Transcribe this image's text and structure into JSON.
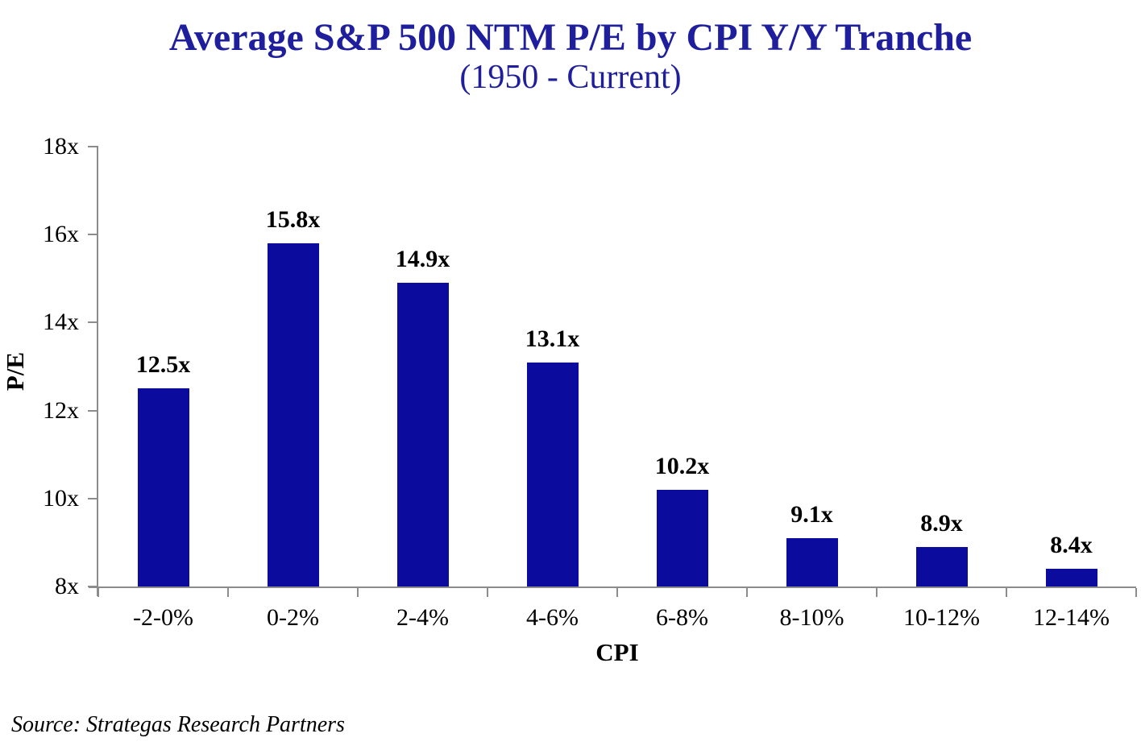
{
  "chart": {
    "title_line1": "Average S&P 500 NTM P/E by CPI Y/Y Tranche",
    "title_line2": "(1950 - Current)",
    "y_axis_title": "P/E",
    "x_axis_title": "CPI",
    "source_note": "Source: Strategas Research Partners"
  },
  "chart_data": {
    "type": "bar",
    "title": "Average S&P 500 NTM P/E by CPI Y/Y Tranche",
    "subtitle": "(1950 - Current)",
    "xlabel": "CPI",
    "ylabel": "P/E",
    "categories": [
      "-2-0%",
      "0-2%",
      "2-4%",
      "4-6%",
      "6-8%",
      "8-10%",
      "10-12%",
      "12-14%"
    ],
    "values": [
      12.5,
      15.8,
      14.9,
      13.1,
      10.2,
      9.1,
      8.9,
      8.4
    ],
    "value_labels": [
      "12.5x",
      "15.8x",
      "14.9x",
      "13.1x",
      "10.2x",
      "9.1x",
      "8.9x",
      "8.4x"
    ],
    "ylim": [
      8,
      18
    ],
    "yticks": [
      8,
      10,
      12,
      14,
      16,
      18
    ],
    "ytick_labels": [
      "8x",
      "10x",
      "12x",
      "14x",
      "16x",
      "18x"
    ],
    "grid": false,
    "legend_position": "none",
    "bar_color": "#0b0b9d",
    "title_color": "#1f1f9e",
    "axis_color": "#8c8c8c",
    "label_color": "#000000"
  }
}
